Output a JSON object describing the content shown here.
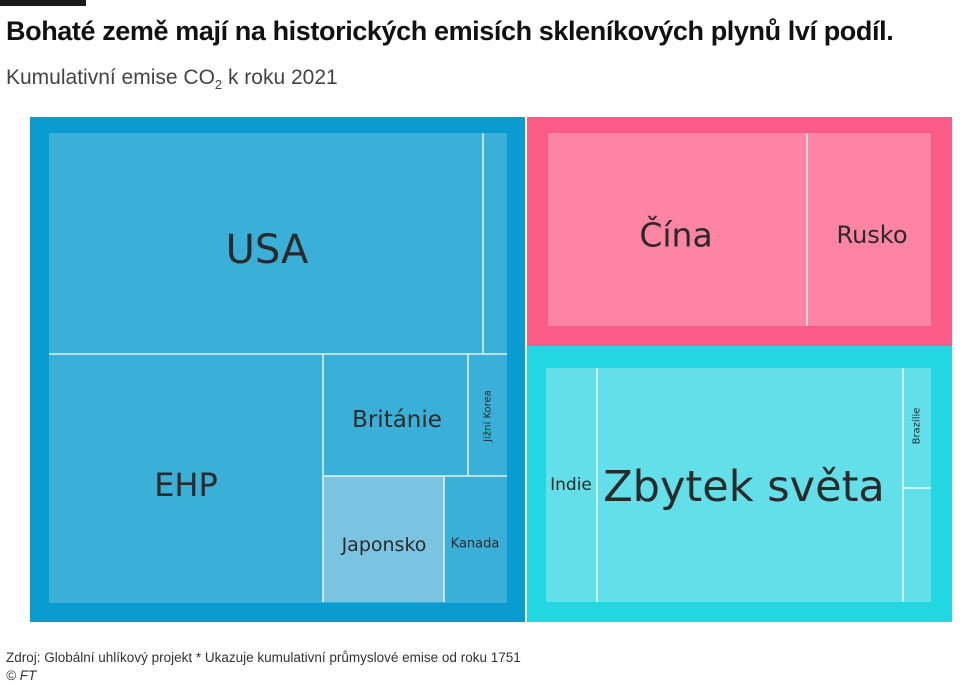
{
  "header": {
    "title": "Bohaté země mají na historických emisích skleníkových plynů lví podíl.",
    "subtitle_main": "Kumulativní emise CO",
    "subtitle_sub": "2",
    "subtitle_tail": " k roku 2021"
  },
  "footer": {
    "source": "Zdroj: Globální uhlíkový projekt  * Ukazuje kumulativní průmyslové emise od roku 1751",
    "credit": "© FT"
  },
  "colors": {
    "rich_outer": "#0a9bd0",
    "rich_inner": "#3aafd8",
    "rich_highlight": "#7ac4e2",
    "mid_outer": "#fb5c87",
    "mid_inner": "#fd84a2",
    "rest_outer": "#22d6e2",
    "rest_inner": "#62dfe8",
    "divider": "#ffffff",
    "label": "#2a2a2a"
  },
  "chart_data": {
    "type": "treemap",
    "title": "Bohaté země mají na historických emisích skleníkových plynů lví podíl.",
    "subtitle": "Kumulativní emise CO2 k roku 2021",
    "groups": [
      {
        "id": "rich",
        "items": [
          {
            "name": "USA",
            "label": "USA",
            "value": 24.5
          },
          {
            "name": "unlabeled-1",
            "label": "",
            "value": 1.3
          },
          {
            "name": "EHP",
            "label": "EHP",
            "value": 17.0
          },
          {
            "name": "Británie",
            "label": "Británie",
            "value": 5.8
          },
          {
            "name": "Jižní Korea",
            "label": "Jižní Korea",
            "value": 1.7
          },
          {
            "name": "unlabeled-2",
            "label": "",
            "value": 1.3
          },
          {
            "name": "Japonsko",
            "label": "Japonsko",
            "value": 4.8
          },
          {
            "name": "Kanada",
            "label": "Kanada",
            "value": 2.5
          }
        ]
      },
      {
        "id": "mid",
        "items": [
          {
            "name": "Čína",
            "label": "Čína",
            "value": 14.3
          },
          {
            "name": "Rusko",
            "label": "Rusko",
            "value": 6.8
          }
        ]
      },
      {
        "id": "rest",
        "items": [
          {
            "name": "Indie",
            "label": "Indie",
            "value": 3.3
          },
          {
            "name": "Zbytek světa",
            "label": "Zbytek světa",
            "value": 17.8
          },
          {
            "name": "Brazílie",
            "label": "Brazílie",
            "value": 1.0
          },
          {
            "name": "unlabeled-3",
            "label": "",
            "value": 0.7
          }
        ]
      }
    ]
  }
}
